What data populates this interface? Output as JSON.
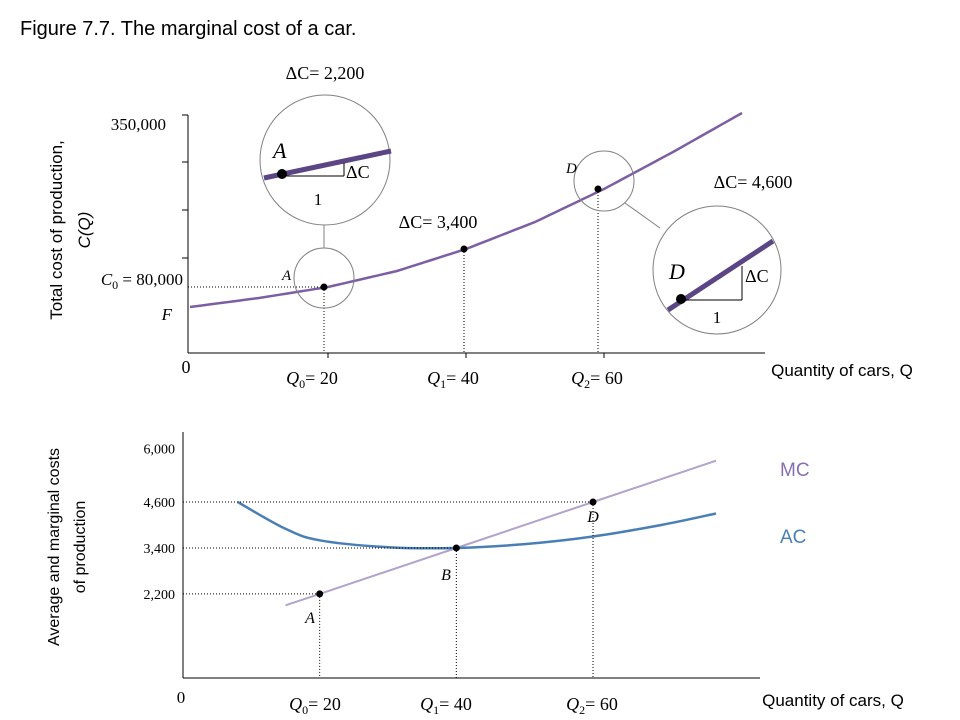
{
  "title": "Figure 7.7. The marginal cost of a car.",
  "colors": {
    "total_cost": "#7d5ea3",
    "tangent": "#5b4585",
    "mc": "#b3a3cc",
    "mc_label": "#8a6fb0",
    "ac": "#4a7fb5",
    "ac_label": "#4a7fb5",
    "axis": "#000000",
    "guide": "#000000",
    "magnifier": "#808080"
  },
  "chart_data": [
    {
      "type": "line",
      "name": "total-cost-curve",
      "ylabel_line1": "Total cost of production,",
      "ylabel_line2": "C(Q)",
      "xlabel": "Quantity of cars, Q",
      "origin_label": "0",
      "ytick_labels": [
        "350,000",
        "C0 = 80,000",
        "F"
      ],
      "xtick_labels": [
        "Q0= 20",
        "Q1= 40",
        "Q2= 60"
      ],
      "x": [
        0,
        10,
        20,
        30,
        40,
        50,
        60,
        70,
        80
      ],
      "y": [
        40000,
        58000,
        80000,
        107000,
        140000,
        180000,
        228000,
        285000,
        352000
      ],
      "points": [
        {
          "label": "A",
          "x": 20,
          "y": 80000
        },
        {
          "label": "Q1 point",
          "x": 40,
          "y": 140000
        },
        {
          "label": "D",
          "x": 60,
          "y": 228000
        }
      ],
      "annotations": {
        "dc_A": "ΔC= 2,200",
        "dc_mid": "ΔC= 3,400",
        "dc_D": "ΔC= 4,600",
        "point_A": "A",
        "point_D": "D",
        "inset_A_point": "A",
        "inset_A_dc": "ΔC",
        "inset_A_one": "1",
        "inset_D_point": "D",
        "inset_D_dc": "ΔC",
        "inset_D_one": "1"
      }
    },
    {
      "type": "line",
      "name": "average-marginal-cost",
      "ylabel_line1": "Average and marginal costs",
      "ylabel_line2": "of production",
      "xlabel": "Quantity of cars, Q",
      "origin_label": "0",
      "ylim": [
        0,
        6000
      ],
      "yticks": [
        6000,
        4600,
        3400,
        2200
      ],
      "ytick_labels": [
        "6,000",
        "4,600",
        "3,400",
        "2,200"
      ],
      "xtick_labels": [
        "Q0= 20",
        "Q1= 40",
        "Q2= 60"
      ],
      "series": [
        {
          "name": "MC",
          "x": [
            15,
            20,
            40,
            60,
            78
          ],
          "values": [
            1900,
            2200,
            3400,
            4600,
            5680
          ]
        },
        {
          "name": "AC",
          "x": [
            8,
            15,
            20,
            30,
            40,
            50,
            60,
            70,
            78
          ],
          "values": [
            4600,
            3900,
            3600,
            3420,
            3400,
            3500,
            3700,
            4000,
            4300
          ]
        }
      ],
      "points": [
        {
          "label": "A",
          "x": 20,
          "y": 2200
        },
        {
          "label": "B",
          "x": 40,
          "y": 3400
        },
        {
          "label": "D",
          "x": 60,
          "y": 4600
        }
      ]
    }
  ]
}
